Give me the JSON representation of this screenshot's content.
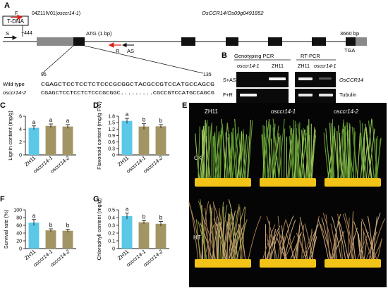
{
  "panels": {
    "A": {
      "letter": "A",
      "tdna_label": "T-DNA",
      "line_id": "04Z11IV01(",
      "line_mutant": "osccr14-1",
      "line_close": ")",
      "gene_name": "OsCCR14/Os09g0491852",
      "pos_neg444": "−444",
      "atg_label": "ATG (1 bp)",
      "end_bp": "3660 bp",
      "tga_label": "TGA",
      "primer_F": "F",
      "primer_S": "S",
      "primer_R": "R",
      "primer_AS": "AS",
      "seq_start": "95",
      "seq_end": "135",
      "wt_label": "Wild type",
      "mut_label": "osccr14-2",
      "wt_seq": "CGAGCTCCTCCTCTCCCGCGGCTACGCCGTCCATGCCAGCG",
      "mut_seq": "CGAGCTCCTCCTCTCCCGCGGC.........CGCCGTCCATGCCAGCG"
    },
    "B": {
      "letter": "B",
      "geno_title": "Genotyping PCR",
      "rt_title": "RT-PCR",
      "lane_mut": "osccr14-1",
      "lane_wt": "ZH11",
      "row1": "S+AS",
      "row2": "F+R",
      "gene_label": "OsCCR14",
      "control_label": "Tubulin"
    },
    "E": {
      "letter": "E",
      "col1": "ZH11",
      "col2": "osccr14-1",
      "col3": "osccr14-2",
      "row1": "CK",
      "row2": "HT"
    }
  },
  "chart_data": [
    {
      "panel": "C",
      "type": "bar",
      "ylabel": "Lignin content (mg/g)",
      "categories": [
        "ZH11",
        "osccr14-1",
        "osccr14-2"
      ],
      "values": [
        4.2,
        4.5,
        4.4
      ],
      "errors": [
        0.3,
        0.3,
        0.3
      ],
      "letters": [
        "a",
        "a",
        "a"
      ],
      "ylim": [
        0,
        6
      ],
      "yticks": [
        "0",
        "2",
        "4",
        "6"
      ],
      "colors": [
        "#5bc8e8",
        "#a39563",
        "#a39563"
      ]
    },
    {
      "panel": "D",
      "type": "bar",
      "ylabel": "Flavonoid content (mg/g FW)",
      "categories": [
        "ZH11",
        "osccr14-1",
        "osccr14-2"
      ],
      "values": [
        1.58,
        1.32,
        1.33
      ],
      "errors": [
        0.12,
        0.13,
        0.08
      ],
      "letters": [
        "a",
        "b",
        "b"
      ],
      "ylim": [
        0,
        1.8
      ],
      "yticks": [
        "0",
        "0.3",
        "0.6",
        "0.9",
        "1.2",
        "1.5",
        "1.8"
      ],
      "colors": [
        "#5bc8e8",
        "#a39563",
        "#a39563"
      ]
    },
    {
      "panel": "F",
      "type": "bar",
      "ylabel": "Survival rate (%)",
      "categories": [
        "ZH11",
        "osccr14-1",
        "osccr14-2"
      ],
      "values": [
        67,
        47,
        46
      ],
      "errors": [
        8,
        4,
        4
      ],
      "letters": [
        "a",
        "b",
        "b"
      ],
      "ylim": [
        0,
        100
      ],
      "yticks": [
        "0",
        "20",
        "40",
        "60",
        "80",
        "100"
      ],
      "colors": [
        "#5bc8e8",
        "#a39563",
        "#a39563"
      ]
    },
    {
      "panel": "G",
      "type": "bar",
      "ylabel": "Chlorophyll content (mg/g)",
      "categories": [
        "ZH11",
        "osccr14-1",
        "osccr14-2"
      ],
      "values": [
        0.42,
        0.34,
        0.32
      ],
      "errors": [
        0.04,
        0.02,
        0.03
      ],
      "letters": [
        "a",
        "b",
        "b"
      ],
      "ylim": [
        0,
        0.5
      ],
      "yticks": [
        "0",
        "0.1",
        "0.2",
        "0.3",
        "0.4",
        "0.5"
      ],
      "colors": [
        "#5bc8e8",
        "#a39563",
        "#a39563"
      ]
    }
  ]
}
